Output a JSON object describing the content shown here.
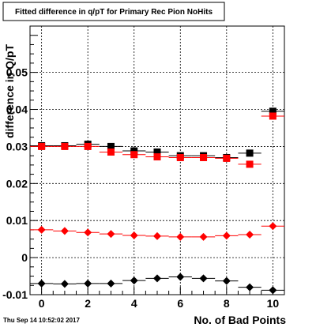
{
  "title": "Fitted difference in q/pT for Primary Rec Pion NoHits",
  "timestamp": "Thu Sep 14 10:52:02 2017",
  "chart_data": {
    "type": "scatter",
    "title": "Fitted difference in q/pT for Primary Rec Pion NoHits",
    "xlabel": "No. of Bad Points",
    "ylabel": "difference in Q/pT",
    "xlim": [
      -0.5,
      10.5
    ],
    "ylim": [
      -0.01,
      0.0625
    ],
    "x_ticks": [
      0,
      2,
      4,
      6,
      8,
      10
    ],
    "x_tick_labels": [
      "0",
      "2",
      "4",
      "6",
      "8",
      "10"
    ],
    "y_ticks": [
      -0.01,
      0,
      0.01,
      0.02,
      0.03,
      0.04,
      0.05
    ],
    "y_tick_labels": [
      "-0.01",
      "0",
      "0.01",
      "0.02",
      "0.03",
      "0.04",
      "0.05"
    ],
    "grid": true,
    "legend": false,
    "x_error": 0.5,
    "series": [
      {
        "marker": "square",
        "color": "#000000",
        "x": [
          0,
          1,
          2,
          3,
          4,
          5,
          6,
          7,
          8,
          9,
          10
        ],
        "y": [
          0.0302,
          0.0302,
          0.0306,
          0.03,
          0.0288,
          0.0285,
          0.0275,
          0.0275,
          0.027,
          0.0282,
          0.0395
        ]
      },
      {
        "marker": "square",
        "color": "#ff0000",
        "x": [
          0,
          1,
          2,
          3,
          4,
          5,
          6,
          7,
          8,
          9,
          10
        ],
        "y": [
          0.03,
          0.03,
          0.03,
          0.0285,
          0.0278,
          0.0272,
          0.027,
          0.027,
          0.0268,
          0.0252,
          0.0382
        ]
      },
      {
        "marker": "diamond",
        "color": "#ff0000",
        "x": [
          0,
          1,
          2,
          3,
          4,
          5,
          6,
          7,
          8,
          9,
          10
        ],
        "y": [
          0.0075,
          0.0072,
          0.0068,
          0.0064,
          0.006,
          0.0058,
          0.0056,
          0.0056,
          0.0059,
          0.0062,
          0.0085
        ]
      },
      {
        "marker": "diamond",
        "color": "#000000",
        "x": [
          0,
          1,
          2,
          3,
          4,
          5,
          6,
          7,
          8,
          9,
          10
        ],
        "y": [
          -0.007,
          -0.0071,
          -0.007,
          -0.007,
          -0.0062,
          -0.0056,
          -0.0052,
          -0.0056,
          -0.0063,
          -0.008,
          -0.0088
        ]
      }
    ]
  }
}
